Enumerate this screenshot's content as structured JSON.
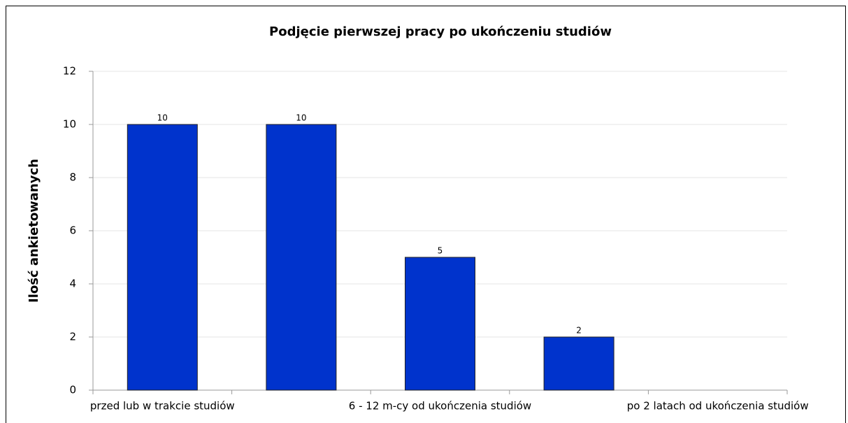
{
  "chart_data": {
    "type": "bar",
    "title": "Podjęcie pierwszej pracy po ukończeniu studiów",
    "y_label": "Ilość ankietowanych",
    "categories": [
      "przed lub w trakcie studiów",
      null,
      "6 - 12 m-cy od ukończenia studiów",
      null,
      "po 2 latach od ukończenia studiów"
    ],
    "values": [
      10,
      10,
      5,
      2,
      null
    ],
    "color": "#0033cc",
    "ylim": [
      0,
      12
    ],
    "yticks": [
      0,
      2,
      4,
      6,
      8,
      10,
      12
    ],
    "grid": true
  }
}
